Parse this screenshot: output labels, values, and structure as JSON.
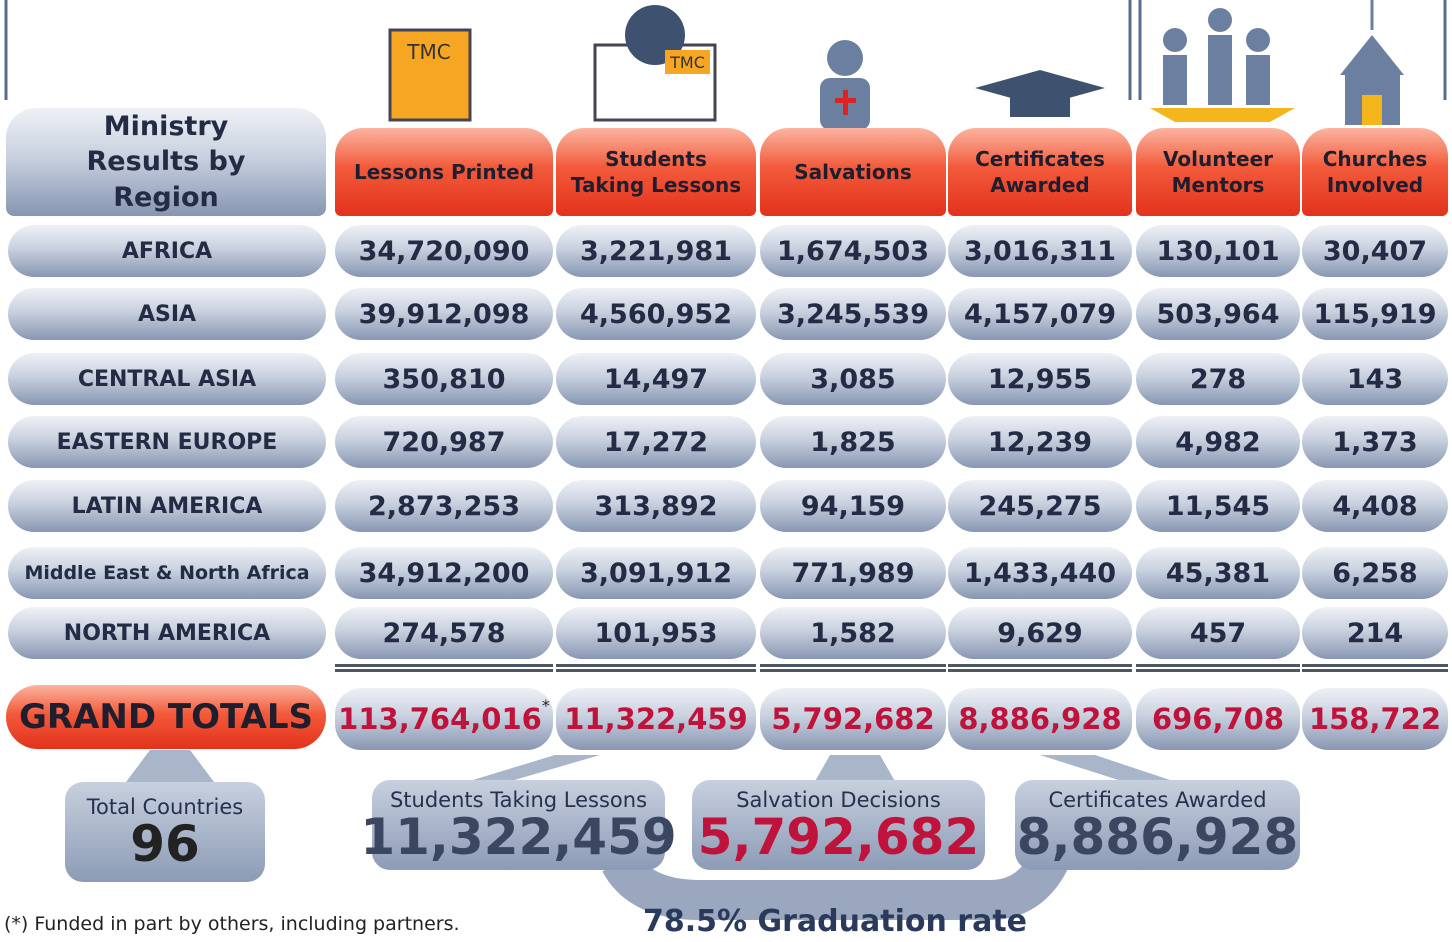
{
  "header": {
    "title": "Ministry Results by Region",
    "icon_label": "TMC"
  },
  "columns": [
    "Lessons Printed",
    "Students Taking Lessons",
    "Salvations",
    "Certificates Awarded",
    "Volunteer Mentors",
    "Churches Involved"
  ],
  "rows": [
    {
      "region": "AFRICA",
      "values": [
        "34,720,090",
        "3,221,981",
        "1,674,503",
        "3,016,311",
        "130,101",
        "30,407"
      ]
    },
    {
      "region": "ASIA",
      "values": [
        "39,912,098",
        "4,560,952",
        "3,245,539",
        "4,157,079",
        "503,964",
        "115,919"
      ]
    },
    {
      "region": "CENTRAL ASIA",
      "values": [
        "350,810",
        "14,497",
        "3,085",
        "12,955",
        "278",
        "143"
      ]
    },
    {
      "region": "EASTERN EUROPE",
      "values": [
        "720,987",
        "17,272",
        "1,825",
        "12,239",
        "4,982",
        "1,373"
      ]
    },
    {
      "region": "LATIN AMERICA",
      "values": [
        "2,873,253",
        "313,892",
        "94,159",
        "245,275",
        "11,545",
        "4,408"
      ]
    },
    {
      "region": "Middle East & North Africa",
      "values": [
        "34,912,200",
        "3,091,912",
        "771,989",
        "1,433,440",
        "45,381",
        "6,258"
      ]
    },
    {
      "region": "NORTH AMERICA",
      "values": [
        "274,578",
        "101,953",
        "1,582",
        "9,629",
        "457",
        "214"
      ]
    }
  ],
  "totals": {
    "label": "GRAND TOTALS",
    "values": [
      "113,764,016",
      "11,322,459",
      "5,792,682",
      "8,886,928",
      "696,708",
      "158,722"
    ],
    "footnote_mark": "*"
  },
  "summary": {
    "countries": {
      "label": "Total Countries",
      "value": "96"
    },
    "boxes": [
      {
        "label": "Students Taking Lessons",
        "value": "11,322,459"
      },
      {
        "label": "Salvation Decisions",
        "value": "5,792,682"
      },
      {
        "label": "Certificates Awarded",
        "value": "8,886,928"
      }
    ],
    "graduation": "78.5% Graduation rate"
  },
  "footnote": "(*) Funded in part by others, including partners."
}
